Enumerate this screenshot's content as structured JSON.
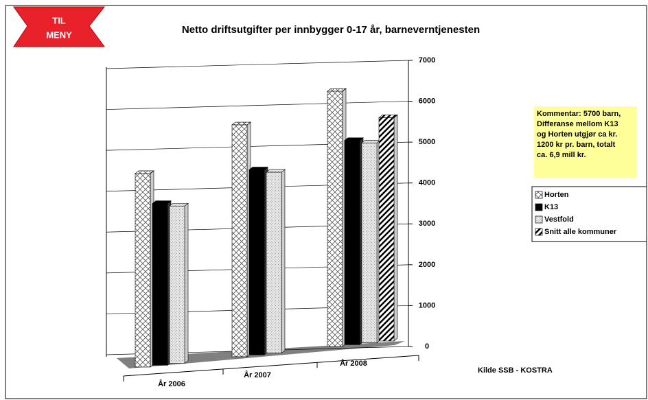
{
  "menu": {
    "line1": "TIL",
    "line2": "MENY"
  },
  "chart_data": {
    "type": "bar3d",
    "title": "Netto driftsutgifter per innbygger 0-17 år, barneverntjenesten",
    "categories": [
      "År 2006",
      "År 2007",
      "År 2008"
    ],
    "series": [
      {
        "name": "Horten",
        "pattern": "crosshatch",
        "values": [
          4550,
          5450,
          6000
        ]
      },
      {
        "name": "K13",
        "color": "#000000",
        "values": [
          3800,
          4350,
          4800
        ]
      },
      {
        "name": "Vestfold",
        "pattern": "speckle",
        "values": [
          3700,
          4250,
          4700
        ]
      },
      {
        "name": "Snitt alle kommuner",
        "pattern": "stripes",
        "values": [
          null,
          null,
          5250
        ]
      }
    ],
    "ylim": [
      0,
      7000
    ],
    "yticks": [
      0,
      1000,
      2000,
      3000,
      4000,
      5000,
      6000,
      7000
    ],
    "grid": true
  },
  "comment": [
    "Kommentar: 5700 barn,",
    "Differanse mellom K13",
    "og Horten utgjør ca kr.",
    "1200 kr pr. barn, totalt",
    "ca.  6,9 mill kr."
  ],
  "source": "Kilde SSB - KOSTRA"
}
